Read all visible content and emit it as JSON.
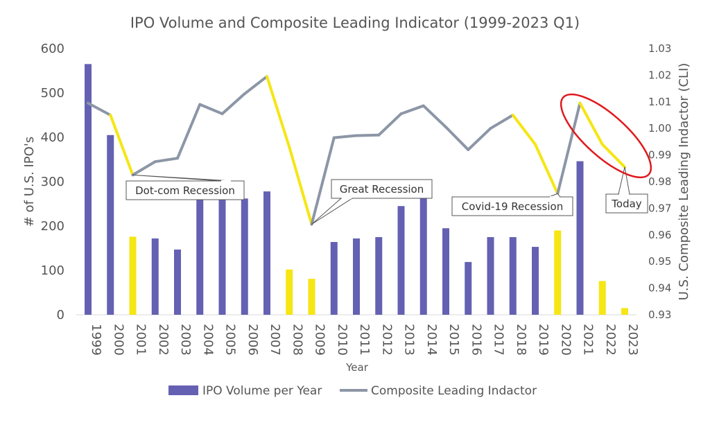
{
  "chart_data": {
    "type": "bar",
    "title": "IPO Volume and Composite Leading Indicator (1999-2023 Q1)",
    "xlabel": "Year",
    "ylabel": "# of U.S. IPO's",
    "y2label": "U.S. Composite Leading Indactor (CLI)",
    "categories": [
      "1999",
      "2000",
      "2001",
      "2002",
      "2003",
      "2004",
      "2005",
      "2006",
      "2007",
      "2008",
      "2009",
      "2010",
      "2011",
      "2012",
      "2013",
      "2014",
      "2015",
      "2016",
      "2017",
      "2018",
      "2019",
      "2020",
      "2021",
      "2022",
      "2023"
    ],
    "ylim": [
      0,
      600
    ],
    "yticks": [
      0,
      100,
      200,
      300,
      400,
      500,
      600
    ],
    "y2lim": [
      0.93,
      1.03
    ],
    "y2ticks": [
      "0.93",
      "0.94",
      "0.95",
      "0.96",
      "0.97",
      "0.98",
      "0.99",
      "1.00",
      "1.01",
      "1.02",
      "1.03"
    ],
    "grid": false,
    "legend_position": "bottom",
    "series": [
      {
        "name": "IPO Volume per Year",
        "type": "bar",
        "axis": "left",
        "color": "#6461b3",
        "highlight_color": "#f5e614",
        "values": [
          565,
          405,
          176,
          172,
          147,
          262,
          262,
          262,
          278,
          102,
          81,
          164,
          172,
          175,
          245,
          270,
          195,
          119,
          175,
          175,
          153,
          190,
          346,
          76,
          15
        ],
        "highlighted": [
          false,
          false,
          true,
          false,
          false,
          false,
          false,
          false,
          false,
          true,
          true,
          false,
          false,
          false,
          false,
          false,
          false,
          false,
          false,
          false,
          false,
          true,
          false,
          true,
          true
        ]
      },
      {
        "name": "Composite Leading Indactor",
        "type": "line",
        "axis": "right",
        "color": "#8c96a6",
        "highlight_color": "#f5e614",
        "values": [
          1.0095,
          1.005,
          0.9825,
          0.9875,
          0.9888,
          1.009,
          1.0055,
          1.013,
          1.0195,
          0.993,
          0.964,
          0.9965,
          0.9973,
          0.9975,
          1.0055,
          1.0085,
          1.0005,
          0.992,
          1.0,
          1.005,
          0.994,
          0.9755,
          1.0095,
          0.994,
          0.9855
        ],
        "highlighted_segments": [
          [
            1,
            2
          ],
          [
            8,
            9
          ],
          [
            9,
            10
          ],
          [
            19,
            20
          ],
          [
            20,
            21
          ],
          [
            22,
            23
          ],
          [
            23,
            24
          ]
        ]
      }
    ],
    "annotations": [
      {
        "text": "Dot-com Recession",
        "points_to": "2001"
      },
      {
        "text": "Great Recession",
        "points_to": "2009"
      },
      {
        "text": "Covid-19 Recession",
        "points_to": "2020"
      },
      {
        "text": "Today",
        "points_to": "2023"
      }
    ]
  }
}
